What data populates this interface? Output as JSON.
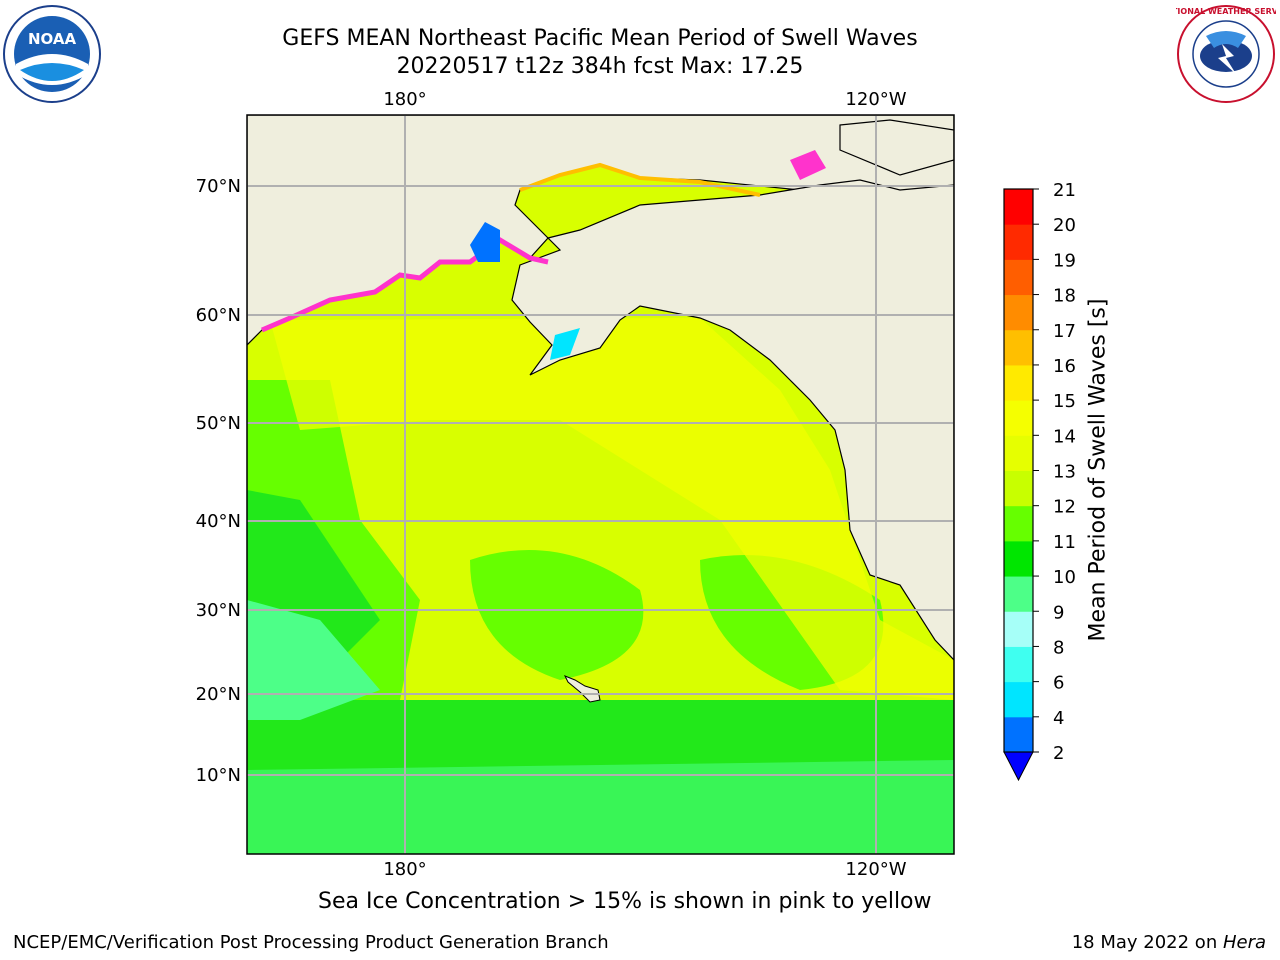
{
  "header": {
    "title_line1": "GEFS MEAN Northeast Pacific Mean Period of Swell Waves",
    "title_line2": "20220517 t12z 384h fcst   Max: 17.25"
  },
  "logos": {
    "left": {
      "icon": "noaa-logo",
      "text": "NOAA"
    },
    "right": {
      "icon": "nws-logo",
      "text": "NATIONAL WEATHER SERVICE"
    }
  },
  "chart_data": {
    "type": "heatmap",
    "title": "GEFS MEAN Northeast Pacific Mean Period of Swell Waves",
    "subtitle": "20220517 t12z 384h fcst   Max: 17.25",
    "max_value": 17.25,
    "x_ticks": [
      {
        "label": "180°",
        "lon": 180
      },
      {
        "label": "120°W",
        "lon": 240
      }
    ],
    "y_ticks": [
      {
        "label": "70°N",
        "lat": 70
      },
      {
        "label": "60°N",
        "lat": 60
      },
      {
        "label": "50°N",
        "lat": 50
      },
      {
        "label": "40°N",
        "lat": 40
      },
      {
        "label": "30°N",
        "lat": 30
      },
      {
        "label": "20°N",
        "lat": 20
      },
      {
        "label": "10°N",
        "lat": 10
      }
    ],
    "grid": true,
    "colorbar": {
      "label": "Mean Period of Swell Waves [s]",
      "ticks": [
        2,
        4,
        6,
        8,
        9,
        10,
        11,
        12,
        13,
        14,
        15,
        16,
        17,
        18,
        19,
        20,
        21
      ],
      "colors": [
        "#0072ff",
        "#00e5ff",
        "#3ffff0",
        "#a6fff8",
        "#4dff88",
        "#00e600",
        "#66ff00",
        "#c8ff00",
        "#e6ff00",
        "#f5ff00",
        "#ffea00",
        "#ffbf00",
        "#ff8c00",
        "#ff5e00",
        "#ff2a00",
        "#ff0000"
      ],
      "under_color": "#0000ff",
      "extend": "min"
    }
  },
  "caption": "Sea Ice Concentration > 15% is shown in pink to yellow",
  "footer": {
    "left": "NCEP/EMC/Verification Post Processing Product Generation Branch",
    "right_date": "18 May 2022 on ",
    "right_host": "Hera"
  }
}
